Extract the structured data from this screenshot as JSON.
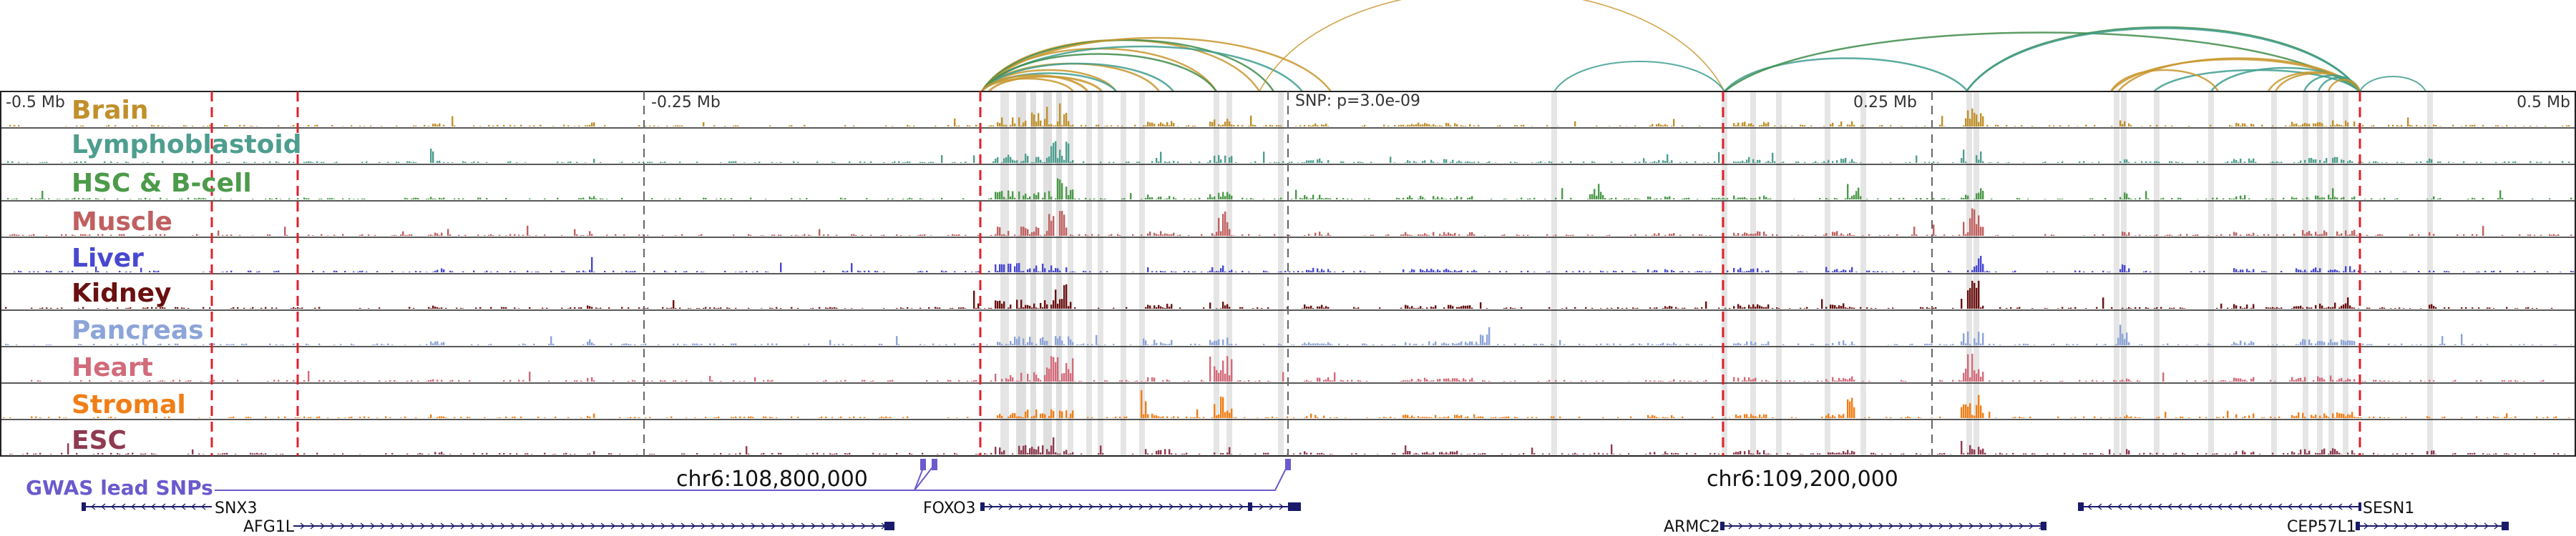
{
  "axis": {
    "left_label": "-0.5 Mb",
    "q1_label": "-0.25 Mb",
    "snp_label": "SNP: p=3.0e-09",
    "q3_label": "0.25 Mb",
    "right_label": "0.5 Mb"
  },
  "tracks": [
    {
      "name": "Brain",
      "color": "#C0902A"
    },
    {
      "name": "Lymphoblastoid",
      "color": "#4E9E8F"
    },
    {
      "name": "HSC & B-cell",
      "color": "#4C9A4A"
    },
    {
      "name": "Muscle",
      "color": "#C06060"
    },
    {
      "name": "Liver",
      "color": "#4848D0"
    },
    {
      "name": "Kidney",
      "color": "#6A1010"
    },
    {
      "name": "Pancreas",
      "color": "#8CA4D8"
    },
    {
      "name": "Heart",
      "color": "#D26B7A"
    },
    {
      "name": "Stromal",
      "color": "#F07E16"
    },
    {
      "name": "ESC",
      "color": "#8E3A50"
    }
  ],
  "gwas": {
    "label": "GWAS lead SNPs",
    "color": "#6A5ACD"
  },
  "coordinates": {
    "left": "chr6:108,800,000",
    "right": "chr6:109,200,000"
  },
  "genes": [
    {
      "name": "SNX3"
    },
    {
      "name": "AFG1L"
    },
    {
      "name": "FOXO3"
    },
    {
      "name": "ARMC2"
    },
    {
      "name": "SESN1"
    },
    {
      "name": "CEP57L1"
    }
  ],
  "colors": {
    "red_dash": "#E0202A",
    "highlight": "#D0D0D0"
  }
}
